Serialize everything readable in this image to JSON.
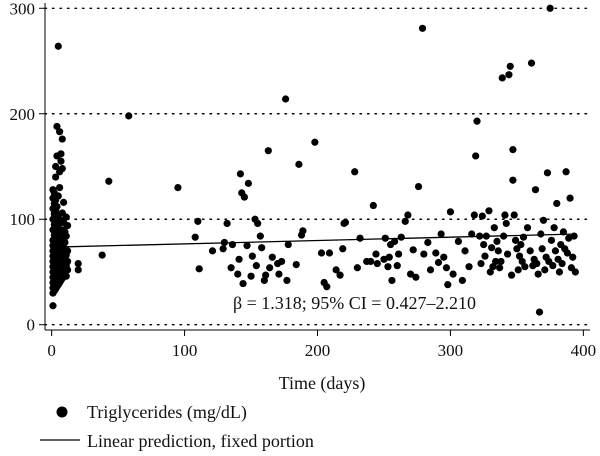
{
  "chart_data": {
    "type": "scatter",
    "title": "",
    "xlabel": "Time (days)",
    "ylabel": "",
    "xlim": [
      -5,
      405
    ],
    "ylim": [
      -5,
      305
    ],
    "xticks": [
      0,
      100,
      200,
      300,
      400
    ],
    "yticks": [
      0,
      100,
      200,
      300
    ],
    "grid": "horizontal dotted",
    "annotation": "β = 1.318; 95% CI = 0.427–2.210",
    "legend_position": "bottom",
    "series": [
      {
        "name": "Triglycerides (mg/dL)",
        "kind": "scatter",
        "color": "#000000",
        "points": [
          [
            1,
            18
          ],
          [
            1,
            30
          ],
          [
            1,
            35
          ],
          [
            1,
            40
          ],
          [
            1,
            45
          ],
          [
            1,
            50
          ],
          [
            1,
            55
          ],
          [
            1,
            60
          ],
          [
            1,
            65
          ],
          [
            1,
            70
          ],
          [
            1,
            75
          ],
          [
            1,
            80
          ],
          [
            1,
            90
          ],
          [
            1,
            100
          ],
          [
            1,
            110
          ],
          [
            1,
            120
          ],
          [
            1,
            128
          ],
          [
            2,
            32
          ],
          [
            2,
            38
          ],
          [
            2,
            46
          ],
          [
            2,
            52
          ],
          [
            2,
            58
          ],
          [
            2,
            63
          ],
          [
            2,
            68
          ],
          [
            2,
            72
          ],
          [
            2,
            78
          ],
          [
            2,
            85
          ],
          [
            2,
            95
          ],
          [
            2,
            105
          ],
          [
            2,
            115
          ],
          [
            2,
            125
          ],
          [
            3,
            34
          ],
          [
            3,
            42
          ],
          [
            3,
            48
          ],
          [
            3,
            56
          ],
          [
            3,
            62
          ],
          [
            3,
            67
          ],
          [
            3,
            74
          ],
          [
            3,
            82
          ],
          [
            3,
            88
          ],
          [
            3,
            98
          ],
          [
            3,
            108
          ],
          [
            3,
            118
          ],
          [
            3,
            140
          ],
          [
            3,
            150
          ],
          [
            4,
            36
          ],
          [
            4,
            44
          ],
          [
            4,
            51
          ],
          [
            4,
            59
          ],
          [
            4,
            66
          ],
          [
            4,
            71
          ],
          [
            4,
            79
          ],
          [
            4,
            86
          ],
          [
            4,
            93
          ],
          [
            4,
            101
          ],
          [
            4,
            112
          ],
          [
            4,
            160
          ],
          [
            4,
            188
          ],
          [
            5,
            38
          ],
          [
            5,
            47
          ],
          [
            5,
            54
          ],
          [
            5,
            61
          ],
          [
            5,
            69
          ],
          [
            5,
            76
          ],
          [
            5,
            84
          ],
          [
            5,
            92
          ],
          [
            5,
            103
          ],
          [
            5,
            122
          ],
          [
            5,
            264
          ],
          [
            6,
            40
          ],
          [
            6,
            49
          ],
          [
            6,
            57
          ],
          [
            6,
            64
          ],
          [
            6,
            73
          ],
          [
            6,
            81
          ],
          [
            6,
            96
          ],
          [
            6,
            130
          ],
          [
            6,
            145
          ],
          [
            6,
            183
          ],
          [
            7,
            42
          ],
          [
            7,
            53
          ],
          [
            7,
            60
          ],
          [
            7,
            70
          ],
          [
            7,
            77
          ],
          [
            7,
            87
          ],
          [
            7,
            99
          ],
          [
            7,
            155
          ],
          [
            7,
            162
          ],
          [
            8,
            44
          ],
          [
            8,
            55
          ],
          [
            8,
            65
          ],
          [
            8,
            74
          ],
          [
            8,
            83
          ],
          [
            8,
            106
          ],
          [
            8,
            148
          ],
          [
            8,
            176
          ],
          [
            9,
            48
          ],
          [
            9,
            58
          ],
          [
            9,
            68
          ],
          [
            9,
            80
          ],
          [
            9,
            90
          ],
          [
            9,
            97
          ],
          [
            9,
            116
          ],
          [
            10,
            50
          ],
          [
            10,
            62
          ],
          [
            10,
            72
          ],
          [
            10,
            78
          ],
          [
            10,
            88
          ],
          [
            11,
            46
          ],
          [
            11,
            56
          ],
          [
            11,
            66
          ],
          [
            11,
            84
          ],
          [
            11,
            102
          ],
          [
            12,
            52
          ],
          [
            12,
            60
          ],
          [
            12,
            70
          ],
          [
            12,
            94
          ],
          [
            20,
            52
          ],
          [
            20,
            58
          ],
          [
            38,
            66
          ],
          [
            43,
            136
          ],
          [
            58,
            198
          ],
          [
            95,
            130
          ],
          [
            108,
            83
          ],
          [
            110,
            98
          ],
          [
            111,
            53
          ],
          [
            121,
            70
          ],
          [
            129,
            72
          ],
          [
            130,
            78
          ],
          [
            132,
            96
          ],
          [
            135,
            54
          ],
          [
            136,
            76
          ],
          [
            140,
            48
          ],
          [
            141,
            62
          ],
          [
            142,
            143
          ],
          [
            143,
            125
          ],
          [
            144,
            39
          ],
          [
            145,
            121
          ],
          [
            147,
            75
          ],
          [
            148,
            134
          ],
          [
            150,
            46
          ],
          [
            151,
            65
          ],
          [
            153,
            100
          ],
          [
            154,
            56
          ],
          [
            155,
            96
          ],
          [
            157,
            84
          ],
          [
            158,
            73
          ],
          [
            160,
            42
          ],
          [
            161,
            47
          ],
          [
            163,
            165
          ],
          [
            164,
            54
          ],
          [
            166,
            64
          ],
          [
            170,
            58
          ],
          [
            171,
            48
          ],
          [
            173,
            60
          ],
          [
            176,
            214
          ],
          [
            177,
            42
          ],
          [
            178,
            76
          ],
          [
            184,
            57
          ],
          [
            186,
            152
          ],
          [
            188,
            85
          ],
          [
            189,
            89
          ],
          [
            198,
            173
          ],
          [
            203,
            68
          ],
          [
            205,
            40
          ],
          [
            207,
            36
          ],
          [
            209,
            68
          ],
          [
            214,
            52
          ],
          [
            217,
            47
          ],
          [
            219,
            72
          ],
          [
            220,
            96
          ],
          [
            221,
            97
          ],
          [
            228,
            145
          ],
          [
            230,
            54
          ],
          [
            232,
            82
          ],
          [
            237,
            60
          ],
          [
            240,
            60
          ],
          [
            242,
            113
          ],
          [
            244,
            67
          ],
          [
            245,
            58
          ],
          [
            250,
            62
          ],
          [
            251,
            82
          ],
          [
            253,
            55
          ],
          [
            254,
            64
          ],
          [
            255,
            76
          ],
          [
            256,
            42
          ],
          [
            258,
            79
          ],
          [
            260,
            56
          ],
          [
            261,
            67
          ],
          [
            263,
            83
          ],
          [
            266,
            98
          ],
          [
            268,
            104
          ],
          [
            270,
            48
          ],
          [
            272,
            71
          ],
          [
            274,
            45
          ],
          [
            276,
            131
          ],
          [
            279,
            281
          ],
          [
            280,
            67
          ],
          [
            283,
            78
          ],
          [
            285,
            52
          ],
          [
            289,
            68
          ],
          [
            291,
            59
          ],
          [
            293,
            86
          ],
          [
            295,
            64
          ],
          [
            297,
            54
          ],
          [
            298,
            38
          ],
          [
            300,
            107
          ],
          [
            302,
            48
          ],
          [
            306,
            79
          ],
          [
            309,
            42
          ],
          [
            311,
            70
          ],
          [
            314,
            55
          ],
          [
            316,
            86
          ],
          [
            318,
            104
          ],
          [
            319,
            160
          ],
          [
            320,
            193
          ],
          [
            322,
            84
          ],
          [
            323,
            58
          ],
          [
            324,
            103
          ],
          [
            325,
            76
          ],
          [
            326,
            65
          ],
          [
            327,
            84
          ],
          [
            329,
            108
          ],
          [
            330,
            50
          ],
          [
            331,
            73
          ],
          [
            332,
            55
          ],
          [
            333,
            92
          ],
          [
            334,
            60
          ],
          [
            335,
            79
          ],
          [
            336,
            70
          ],
          [
            337,
            54
          ],
          [
            338,
            60
          ],
          [
            339,
            234
          ],
          [
            340,
            84
          ],
          [
            341,
            104
          ],
          [
            342,
            96
          ],
          [
            343,
            67
          ],
          [
            344,
            237
          ],
          [
            345,
            245
          ],
          [
            346,
            47
          ],
          [
            347,
            166
          ],
          [
            347,
            137
          ],
          [
            348,
            104
          ],
          [
            349,
            80
          ],
          [
            350,
            72
          ],
          [
            351,
            52
          ],
          [
            352,
            65
          ],
          [
            353,
            76
          ],
          [
            354,
            60
          ],
          [
            355,
            83
          ],
          [
            356,
            55
          ],
          [
            358,
            92
          ],
          [
            360,
            70
          ],
          [
            361,
            248
          ],
          [
            362,
            56
          ],
          [
            363,
            62
          ],
          [
            364,
            128
          ],
          [
            365,
            58
          ],
          [
            366,
            48
          ],
          [
            367,
            12
          ],
          [
            368,
            86
          ],
          [
            369,
            72
          ],
          [
            370,
            99
          ],
          [
            371,
            52
          ],
          [
            372,
            64
          ],
          [
            373,
            144
          ],
          [
            374,
            60
          ],
          [
            375,
            300
          ],
          [
            376,
            80
          ],
          [
            377,
            56
          ],
          [
            378,
            92
          ],
          [
            379,
            70
          ],
          [
            380,
            115
          ],
          [
            381,
            62
          ],
          [
            382,
            50
          ],
          [
            383,
            76
          ],
          [
            384,
            58
          ],
          [
            385,
            88
          ],
          [
            386,
            72
          ],
          [
            387,
            145
          ],
          [
            388,
            68
          ],
          [
            389,
            82
          ],
          [
            390,
            120
          ],
          [
            391,
            54
          ],
          [
            392,
            64
          ],
          [
            393,
            84
          ],
          [
            394,
            50
          ]
        ]
      },
      {
        "name": "Linear prediction, fixed portion",
        "kind": "line",
        "color": "#000000",
        "points": [
          [
            0,
            73.5
          ],
          [
            395,
            86.0
          ]
        ]
      }
    ]
  }
}
